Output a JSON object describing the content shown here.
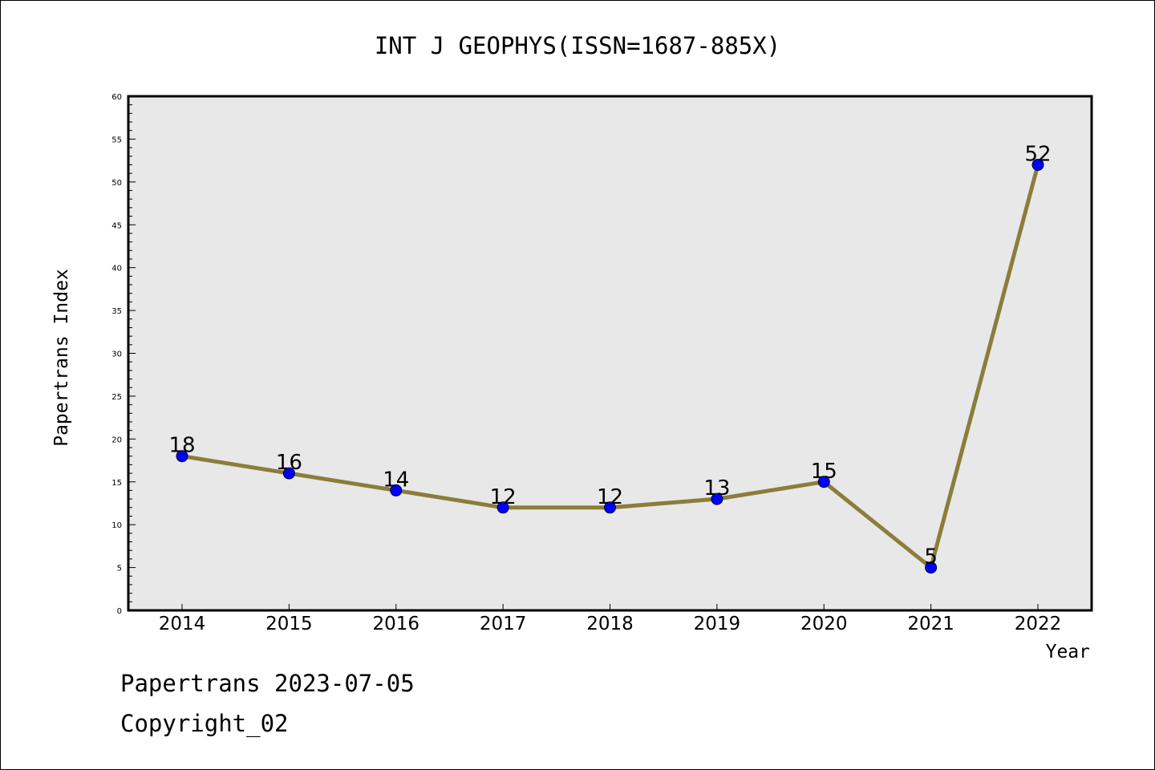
{
  "chart_data": {
    "type": "line",
    "title": "INT J GEOPHYS(ISSN=1687-885X)",
    "xlabel": "Year",
    "ylabel": "Papertrans Index",
    "categories": [
      "2014",
      "2015",
      "2016",
      "2017",
      "2018",
      "2019",
      "2020",
      "2021",
      "2022"
    ],
    "series": [
      {
        "values": [
          18,
          16,
          14,
          12,
          12,
          13,
          15,
          5,
          52
        ],
        "data_labels": [
          "18",
          "16",
          "14",
          "12",
          "12",
          "13",
          "15",
          "5",
          "52"
        ]
      }
    ],
    "ylim": [
      0,
      60
    ],
    "yticks": [
      "0",
      "5",
      "10",
      "15",
      "20",
      "25",
      "30",
      "35",
      "40",
      "45",
      "50",
      "55",
      "60"
    ],
    "grid": false,
    "colors": {
      "line": "#8b7d3a",
      "marker": "#0000ff",
      "plot_background": "#e8e8e8"
    }
  },
  "footer": {
    "line1": "Papertrans 2023-07-05",
    "line2": "Copyright_02"
  }
}
